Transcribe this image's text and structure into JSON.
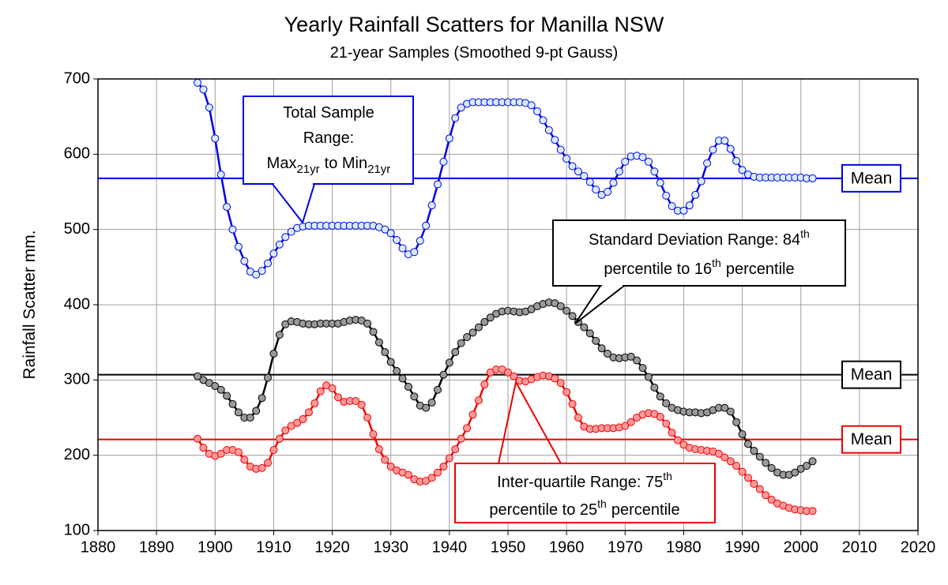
{
  "chart_data": {
    "type": "line",
    "title": "Yearly Rainfall Scatters for Manilla NSW",
    "subtitle": "21-year Samples (Smoothed 9-pt Gauss)",
    "y_label": "Rainfall Scatter mm.",
    "xlim": [
      1880,
      2020
    ],
    "xticks": [
      1880,
      1890,
      1900,
      1910,
      1920,
      1930,
      1940,
      1950,
      1960,
      1970,
      1980,
      1990,
      2000,
      2010,
      2020
    ],
    "ylim": [
      100,
      700
    ],
    "yticks": [
      100,
      200,
      300,
      400,
      500,
      600,
      700
    ],
    "grid": true,
    "x": [
      1897,
      1898,
      1899,
      1900,
      1901,
      1902,
      1903,
      1904,
      1905,
      1906,
      1907,
      1908,
      1909,
      1910,
      1911,
      1912,
      1913,
      1914,
      1915,
      1916,
      1917,
      1918,
      1919,
      1920,
      1921,
      1922,
      1923,
      1924,
      1925,
      1926,
      1927,
      1928,
      1929,
      1930,
      1931,
      1932,
      1933,
      1934,
      1935,
      1936,
      1937,
      1938,
      1939,
      1940,
      1941,
      1942,
      1943,
      1944,
      1945,
      1946,
      1947,
      1948,
      1949,
      1950,
      1951,
      1952,
      1953,
      1954,
      1955,
      1956,
      1957,
      1958,
      1959,
      1960,
      1961,
      1962,
      1963,
      1964,
      1965,
      1966,
      1967,
      1968,
      1969,
      1970,
      1971,
      1972,
      1973,
      1974,
      1975,
      1976,
      1977,
      1978,
      1979,
      1980,
      1981,
      1982,
      1983,
      1984,
      1985,
      1986,
      1987,
      1988,
      1989,
      1990,
      1991,
      1992,
      1993,
      1994,
      1995,
      1996,
      1997,
      1998,
      1999,
      2000,
      2001,
      2002
    ],
    "series": [
      {
        "color": "#0000e6",
        "marker_color": "#d8ecff",
        "values": [
          695,
          686,
          662,
          621,
          573,
          530,
          500,
          477,
          458,
          444,
          440,
          445,
          455,
          468,
          480,
          490,
          497,
          502,
          504,
          505,
          505,
          505,
          505,
          505,
          505,
          505,
          505,
          505,
          505,
          505,
          505,
          503,
          500,
          495,
          486,
          475,
          467,
          470,
          485,
          505,
          532,
          560,
          590,
          621,
          648,
          662,
          667,
          669,
          669,
          669,
          669,
          669,
          669,
          669,
          669,
          669,
          668,
          665,
          657,
          645,
          632,
          619,
          606,
          594,
          584,
          577,
          571,
          563,
          553,
          546,
          550,
          562,
          577,
          590,
          597,
          598,
          596,
          590,
          577,
          562,
          545,
          531,
          525,
          525,
          532,
          546,
          564,
          588,
          606,
          618,
          618,
          607,
          591,
          579,
          573,
          570,
          569,
          569,
          569,
          569,
          569,
          569,
          569,
          569,
          568,
          568
        ]
      },
      {
        "color": "#000000",
        "marker_color": "#9a9a9a",
        "values": [
          305,
          300,
          296,
          292,
          287,
          279,
          268,
          257,
          250,
          250,
          259,
          276,
          303,
          335,
          360,
          374,
          378,
          377,
          375,
          374,
          374,
          375,
          375,
          375,
          375,
          377,
          379,
          380,
          379,
          375,
          364,
          350,
          337,
          324,
          312,
          302,
          291,
          278,
          266,
          263,
          270,
          287,
          307,
          323,
          337,
          349,
          357,
          363,
          370,
          377,
          383,
          388,
          391,
          392,
          391,
          390,
          391,
          394,
          398,
          401,
          403,
          402,
          398,
          392,
          385,
          377,
          370,
          362,
          352,
          342,
          335,
          330,
          329,
          330,
          331,
          326,
          316,
          304,
          290,
          278,
          269,
          263,
          260,
          258,
          257,
          257,
          256,
          257,
          260,
          263,
          263,
          258,
          244,
          228,
          215,
          206,
          198,
          190,
          183,
          177,
          174,
          174,
          177,
          182,
          186,
          192
        ]
      },
      {
        "color": "#ee0000",
        "marker_color": "#ff9a9a",
        "values": [
          222,
          210,
          202,
          199,
          202,
          207,
          207,
          204,
          194,
          185,
          182,
          183,
          190,
          207,
          222,
          233,
          239,
          243,
          248,
          257,
          269,
          285,
          293,
          289,
          277,
          271,
          272,
          272,
          267,
          250,
          228,
          208,
          194,
          185,
          180,
          177,
          174,
          168,
          165,
          166,
          170,
          177,
          185,
          196,
          208,
          222,
          236,
          254,
          273,
          294,
          310,
          314,
          314,
          310,
          305,
          299,
          298,
          301,
          304,
          306,
          305,
          302,
          296,
          284,
          268,
          250,
          238,
          235,
          235,
          236,
          236,
          236,
          237,
          239,
          244,
          250,
          254,
          256,
          255,
          251,
          242,
          230,
          220,
          214,
          210,
          208,
          207,
          206,
          205,
          202,
          197,
          192,
          186,
          178,
          170,
          162,
          155,
          147,
          141,
          136,
          133,
          130,
          128,
          127,
          126,
          126
        ]
      }
    ],
    "means": [
      {
        "value": 568,
        "color": "#0000e6",
        "label": "Mean"
      },
      {
        "value": 307,
        "color": "#000000",
        "label": "Mean"
      },
      {
        "value": 221,
        "color": "#ee0000",
        "label": "Mean"
      }
    ],
    "annotations": [
      {
        "lines": [
          [
            "Total Sample"
          ],
          [
            "Range:"
          ],
          [
            "Max",
            "21yr",
            "to Min",
            "21yr"
          ]
        ]
      },
      {
        "lines": [
          [
            "Standard Deviation Range: 84",
            "th"
          ],
          [
            "percentile to 16",
            "th",
            "percentile"
          ]
        ]
      },
      {
        "lines": [
          [
            "Inter-quartile Range: 75",
            "th"
          ],
          [
            "percentile to 25",
            "th",
            "percentile"
          ]
        ]
      }
    ]
  }
}
